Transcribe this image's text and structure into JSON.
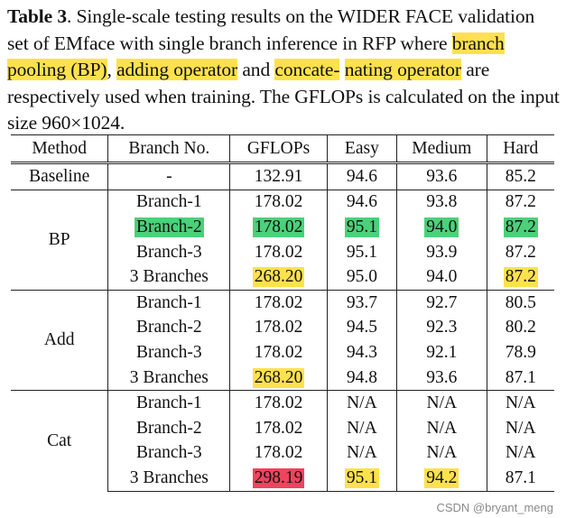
{
  "caption": {
    "label": "Table 3",
    "p1": ". Single-scale testing results on the WIDER FACE validation set of EMface with single branch inference in RFP where ",
    "hl1": "branch pooling (BP)",
    "p2": ", ",
    "hl2": "adding operator",
    "p3": " and ",
    "hl3a": "concate-",
    "hl3b": "nating operator",
    "p4": " are respectively used when training. The GFLOPs is calculated on the input size 960×1024."
  },
  "table": {
    "headers": [
      "Method",
      "Branch No.",
      "GFLOPs",
      "Easy",
      "Medium",
      "Hard"
    ],
    "baseline": {
      "method": "Baseline",
      "branch": "-",
      "gflops": "132.91",
      "easy": "94.6",
      "medium": "93.6",
      "hard": "85.2"
    },
    "groups": [
      {
        "method": "BP",
        "rows": [
          {
            "branch": "Branch-1",
            "gflops": "178.02",
            "easy": "94.6",
            "medium": "93.8",
            "hard": "87.2"
          },
          {
            "branch": "Branch-2",
            "gflops": "178.02",
            "easy": "95.1",
            "medium": "94.0",
            "hard": "87.2"
          },
          {
            "branch": "Branch-3",
            "gflops": "178.02",
            "easy": "95.1",
            "medium": "93.9",
            "hard": "87.2"
          },
          {
            "branch": "3 Branches",
            "gflops": "268.20",
            "easy": "95.0",
            "medium": "94.0",
            "hard": "87.2"
          }
        ]
      },
      {
        "method": "Add",
        "rows": [
          {
            "branch": "Branch-1",
            "gflops": "178.02",
            "easy": "93.7",
            "medium": "92.7",
            "hard": "80.5"
          },
          {
            "branch": "Branch-2",
            "gflops": "178.02",
            "easy": "94.5",
            "medium": "92.3",
            "hard": "80.2"
          },
          {
            "branch": "Branch-3",
            "gflops": "178.02",
            "easy": "94.3",
            "medium": "92.1",
            "hard": "78.9"
          },
          {
            "branch": "3 Branches",
            "gflops": "268.20",
            "easy": "94.8",
            "medium": "93.6",
            "hard": "87.1"
          }
        ]
      },
      {
        "method": "Cat",
        "rows": [
          {
            "branch": "Branch-1",
            "gflops": "178.02",
            "easy": "N/A",
            "medium": "N/A",
            "hard": "N/A"
          },
          {
            "branch": "Branch-2",
            "gflops": "178.02",
            "easy": "N/A",
            "medium": "N/A",
            "hard": "N/A"
          },
          {
            "branch": "Branch-3",
            "gflops": "178.02",
            "easy": "N/A",
            "medium": "N/A",
            "hard": "N/A"
          },
          {
            "branch": "3 Branches",
            "gflops": "298.19",
            "easy": "95.1",
            "medium": "94.2",
            "hard": "87.1"
          }
        ]
      }
    ]
  },
  "colors": {
    "green": "#4cd07a",
    "yellow": "#ffe14d",
    "red": "#f0435e"
  },
  "watermark": "CSDN @bryant_meng"
}
